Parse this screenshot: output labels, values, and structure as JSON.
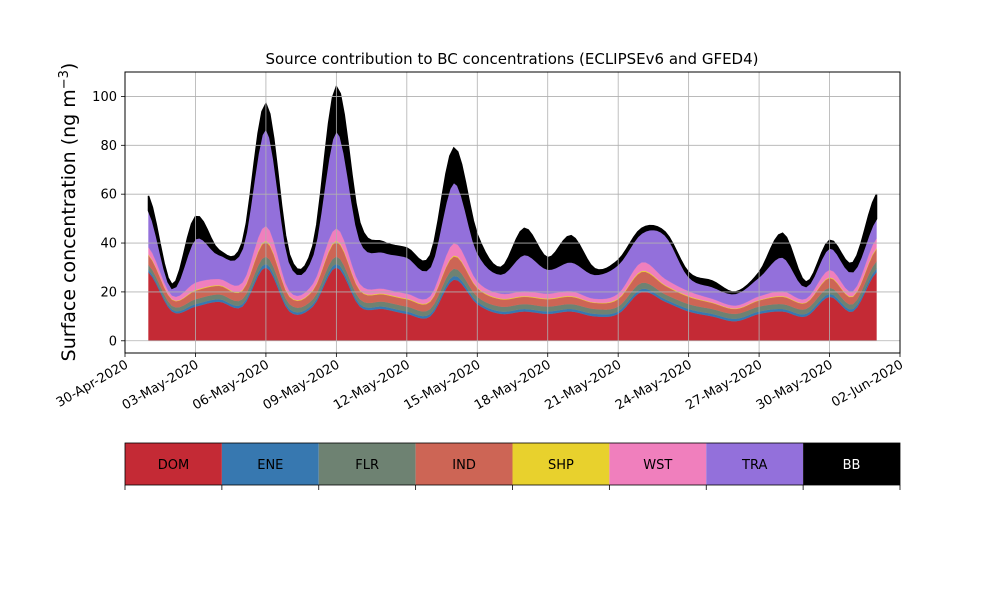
{
  "chart_data": {
    "type": "area",
    "stacked": true,
    "title": "Source contribution to BC concentrations (ECLIPSEv6 and GFED4)",
    "xlabel": "",
    "ylabel_main": "Surface concentration (ng m",
    "ylabel_sup": "−3",
    "ylabel_close": ")",
    "ylim": [
      -5,
      110
    ],
    "yticks": [
      0,
      20,
      40,
      60,
      80,
      100
    ],
    "xlim": [
      "2020-04-30",
      "2020-06-02"
    ],
    "xticks": [
      "2020-04-30",
      "2020-05-03",
      "2020-05-06",
      "2020-05-09",
      "2020-05-12",
      "2020-05-15",
      "2020-05-18",
      "2020-05-21",
      "2020-05-24",
      "2020-05-27",
      "2020-05-30",
      "2020-06-02"
    ],
    "xtick_labels": [
      "30-Apr-2020",
      "03-May-2020",
      "06-May-2020",
      "09-May-2020",
      "12-May-2020",
      "15-May-2020",
      "18-May-2020",
      "21-May-2020",
      "24-May-2020",
      "27-May-2020",
      "30-May-2020",
      "02-Jun-2020"
    ],
    "grid": true,
    "legend_position": "below plot (colorbar)",
    "dates": [
      "2020-05-01",
      "2020-05-02",
      "2020-05-03",
      "2020-05-04",
      "2020-05-05",
      "2020-05-06",
      "2020-05-07",
      "2020-05-08",
      "2020-05-09",
      "2020-05-10",
      "2020-05-11",
      "2020-05-12",
      "2020-05-13",
      "2020-05-14",
      "2020-05-15",
      "2020-05-16",
      "2020-05-17",
      "2020-05-18",
      "2020-05-19",
      "2020-05-20",
      "2020-05-21",
      "2020-05-22",
      "2020-05-23",
      "2020-05-24",
      "2020-05-25",
      "2020-05-26",
      "2020-05-27",
      "2020-05-28",
      "2020-05-29",
      "2020-05-30",
      "2020-05-31",
      "2020-06-01"
    ],
    "series": [
      {
        "name": "DOM",
        "color": "#c42a35",
        "values": [
          28,
          12,
          14,
          16,
          14,
          30,
          12,
          14,
          30,
          14,
          13,
          11,
          10,
          25,
          15,
          11,
          12,
          11,
          12,
          10,
          11,
          20,
          16,
          12,
          10,
          8,
          11,
          12,
          10,
          18,
          12,
          28
        ]
      },
      {
        "name": "ENE",
        "color": "#3778b0",
        "values": [
          1,
          0.8,
          1,
          1,
          1,
          1.5,
          1,
          1,
          1.5,
          1,
          1,
          1,
          1,
          1.5,
          1,
          1,
          1,
          1,
          1,
          1,
          1,
          1.2,
          1,
          1,
          1,
          1,
          1,
          1,
          1,
          1.2,
          1,
          1.5
        ]
      },
      {
        "name": "FLR",
        "color": "#6e8272",
        "values": [
          2,
          1.5,
          2,
          2,
          2,
          3,
          2,
          2,
          3,
          2,
          2,
          2,
          2,
          3,
          2,
          2,
          2,
          2,
          2,
          2,
          2,
          2.5,
          2,
          2,
          2,
          2,
          2,
          2,
          2,
          2.5,
          2,
          3
        ]
      },
      {
        "name": "IND",
        "color": "#cd6555",
        "values": [
          4,
          2.5,
          3.5,
          3.5,
          3.5,
          6,
          3,
          3.5,
          6,
          3.5,
          3,
          3,
          3,
          5,
          3.5,
          3,
          3,
          3,
          3,
          2.5,
          3,
          4.5,
          3.5,
          3,
          2.5,
          2,
          2.5,
          3,
          2.5,
          4,
          3,
          5
        ]
      },
      {
        "name": "SHP",
        "color": "#e8d12d",
        "values": [
          0.3,
          0.2,
          0.3,
          0.3,
          0.3,
          0.5,
          0.3,
          0.3,
          0.5,
          0.3,
          0.3,
          0.3,
          0.3,
          0.4,
          0.3,
          0.3,
          0.3,
          0.3,
          0.3,
          0.2,
          0.3,
          0.4,
          0.3,
          0.3,
          0.2,
          0.2,
          0.2,
          0.3,
          0.2,
          0.3,
          0.3,
          0.4
        ]
      },
      {
        "name": "WST",
        "color": "#f07fbd",
        "values": [
          3,
          1.5,
          3,
          2.5,
          3,
          6,
          2,
          2.5,
          5,
          2.5,
          2,
          2,
          2,
          5,
          2.5,
          2,
          2,
          2,
          2,
          1.5,
          2,
          3.5,
          2.5,
          2,
          1.5,
          1.2,
          1.5,
          2,
          1.5,
          3,
          2,
          4
        ]
      },
      {
        "name": "TRA",
        "color": "#9370db",
        "values": [
          15,
          3,
          18,
          10,
          14,
          40,
          12,
          12,
          40,
          18,
          15,
          15,
          12,
          25,
          12,
          8,
          15,
          10,
          12,
          10,
          12,
          12,
          18,
          6,
          5,
          5,
          8,
          14,
          5,
          9,
          8,
          8
        ]
      },
      {
        "name": "BB",
        "color": "#000000",
        "values": [
          6,
          1.5,
          9,
          1.8,
          2.5,
          10,
          3,
          3.5,
          18,
          7,
          4.2,
          3.7,
          4.7,
          14,
          7.2,
          2.7,
          10.7,
          4.7,
          10.7,
          2.3,
          1.7,
          1.9,
          1.2,
          1.7,
          2.3,
          0.6,
          1.8,
          9.7,
          1.8,
          3.1,
          3.7,
          10.1
        ]
      }
    ]
  }
}
